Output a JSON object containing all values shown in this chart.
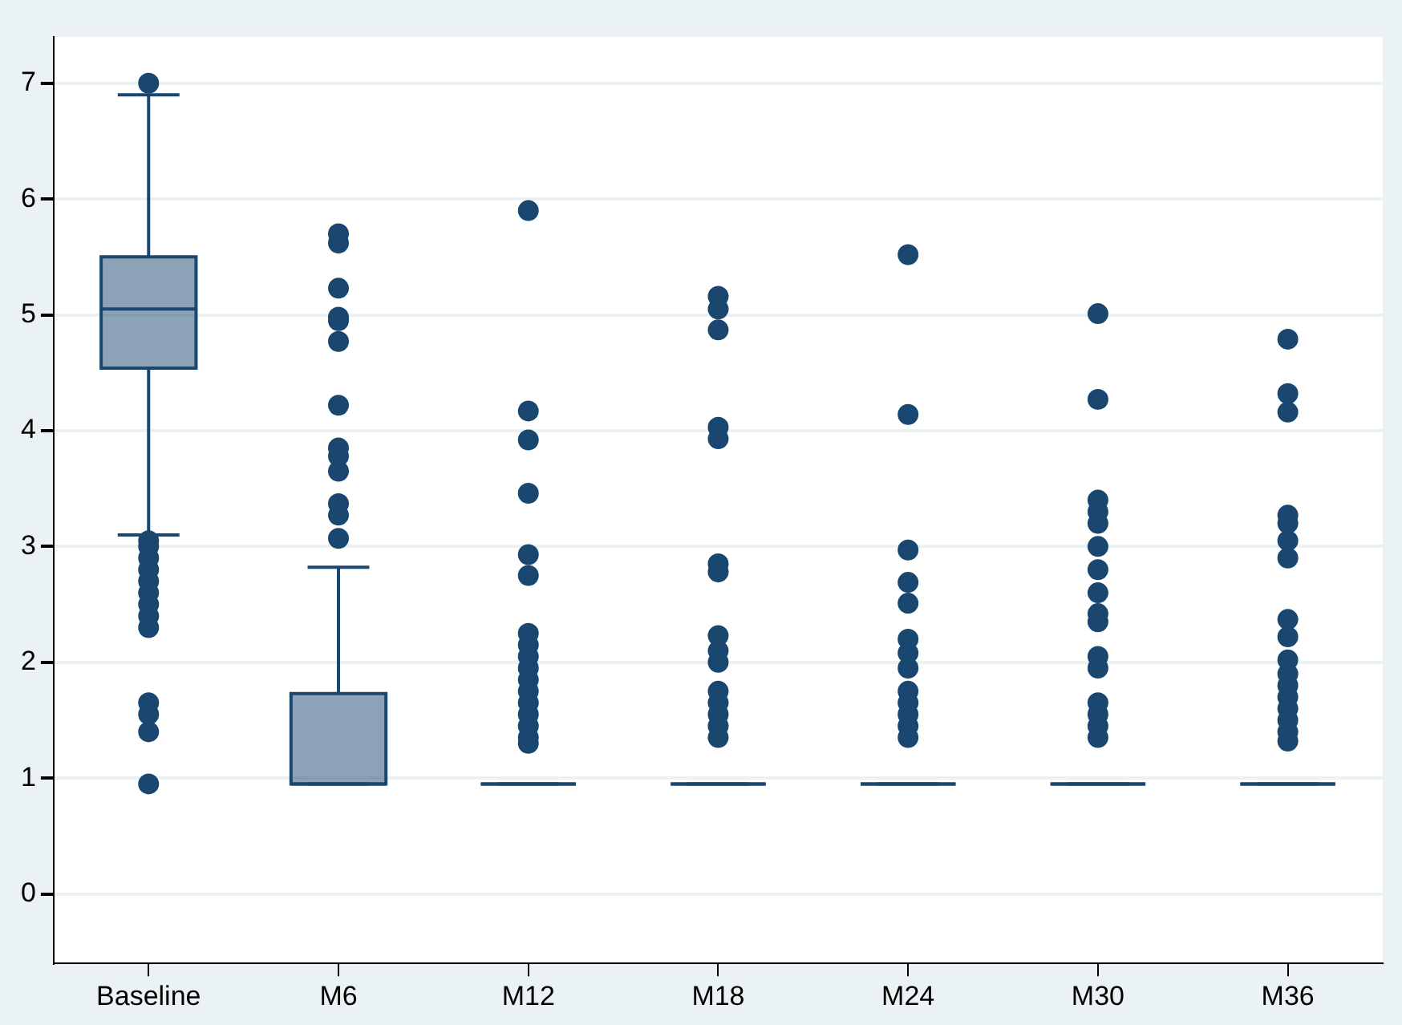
{
  "chart_data": {
    "type": "box",
    "categories": [
      "Baseline",
      "M6",
      "M12",
      "M18",
      "M24",
      "M30",
      "M36"
    ],
    "color": "#1a476f",
    "ylim": [
      -0.6,
      7.4
    ],
    "yticks": [
      0,
      1,
      2,
      3,
      4,
      5,
      6,
      7
    ],
    "grid": "y",
    "legend": false,
    "boxes": [
      {
        "low": 3.1,
        "q1": 4.54,
        "median": 5.05,
        "q3": 5.5,
        "high": 6.9,
        "outliers": [
          7.0,
          3.05,
          3.0,
          2.9,
          2.8,
          2.7,
          2.6,
          2.5,
          2.4,
          2.3,
          1.65,
          1.55,
          1.4,
          0.95
        ]
      },
      {
        "low": 0.95,
        "q1": 0.95,
        "median": 0.95,
        "q3": 1.73,
        "high": 2.82,
        "outliers": [
          5.7,
          5.62,
          5.23,
          4.98,
          4.95,
          4.77,
          4.22,
          3.85,
          3.78,
          3.65,
          3.37,
          3.27,
          3.07
        ]
      },
      {
        "low": 0.95,
        "q1": 0.95,
        "median": 0.95,
        "q3": 0.95,
        "high": 0.95,
        "outliers": [
          5.9,
          4.17,
          3.92,
          3.46,
          2.93,
          2.75,
          2.25,
          2.15,
          2.05,
          1.95,
          1.85,
          1.75,
          1.65,
          1.55,
          1.45,
          1.35,
          1.3
        ]
      },
      {
        "low": 0.95,
        "q1": 0.95,
        "median": 0.95,
        "q3": 0.95,
        "high": 0.95,
        "outliers": [
          5.16,
          5.05,
          4.87,
          4.03,
          3.93,
          2.85,
          2.78,
          2.23,
          2.1,
          2.0,
          1.75,
          1.65,
          1.55,
          1.45,
          1.35
        ]
      },
      {
        "low": 0.95,
        "q1": 0.95,
        "median": 0.95,
        "q3": 0.95,
        "high": 0.95,
        "outliers": [
          5.52,
          4.14,
          2.97,
          2.69,
          2.51,
          2.2,
          2.08,
          1.95,
          1.75,
          1.65,
          1.55,
          1.45,
          1.35
        ]
      },
      {
        "low": 0.95,
        "q1": 0.95,
        "median": 0.95,
        "q3": 0.95,
        "high": 0.95,
        "outliers": [
          5.01,
          4.27,
          3.4,
          3.3,
          3.2,
          3.0,
          2.8,
          2.6,
          2.42,
          2.35,
          2.05,
          1.95,
          1.65,
          1.55,
          1.45,
          1.35
        ]
      },
      {
        "low": 0.95,
        "q1": 0.95,
        "median": 0.95,
        "q3": 0.95,
        "high": 0.95,
        "outliers": [
          4.79,
          4.32,
          4.16,
          3.27,
          3.2,
          3.05,
          2.9,
          2.37,
          2.22,
          2.02,
          1.9,
          1.8,
          1.7,
          1.6,
          1.5,
          1.4,
          1.32
        ]
      }
    ]
  }
}
